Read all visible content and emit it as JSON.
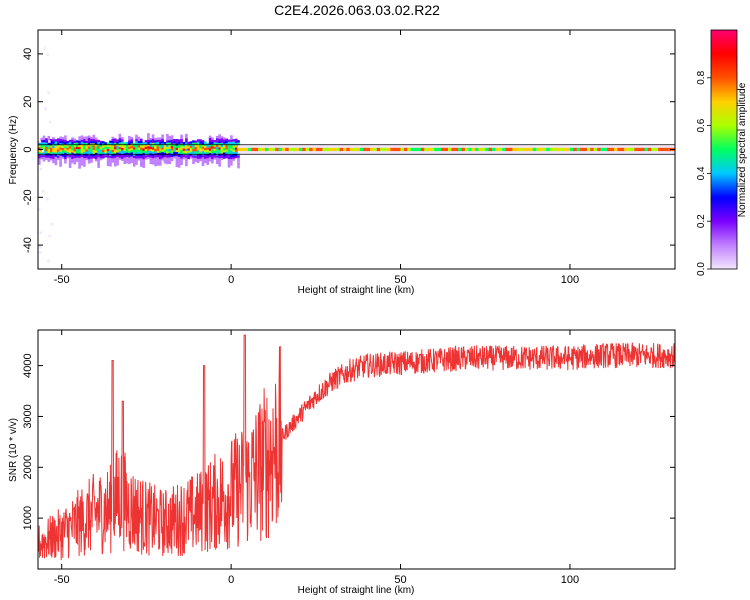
{
  "page": {
    "title": "C2E4.2026.063.03.02.R22"
  },
  "chart_data": [
    {
      "type": "heatmap",
      "name": "spectrogram",
      "xlabel": "Height of straight line (km)",
      "ylabel": "Frequency (Hz)",
      "xlim": [
        -57,
        131
      ],
      "ylim": [
        -50,
        50
      ],
      "xticks": [
        -50,
        0,
        50,
        100
      ],
      "yticks": [
        -40,
        -20,
        0,
        20,
        40
      ],
      "colorbar": {
        "label": "Normalized spectral amplitude",
        "range": [
          0,
          1
        ],
        "ticks": [
          "0.0",
          "0.2",
          "0.4",
          "0.6",
          "0.8"
        ],
        "colors": [
          "#f2e6ff",
          "#c080ff",
          "#7a00ff",
          "#0000ff",
          "#00c8ff",
          "#00ff60",
          "#aaff00",
          "#ffd000",
          "#ff5000",
          "#ff0000",
          "#ff0070"
        ]
      },
      "guide_lines_hz": [
        2,
        -2
      ],
      "features": [
        {
          "x_range": [
            -57,
            2
          ],
          "freq_spread_hz": [
            -8,
            6
          ],
          "description": "broad noisy band"
        },
        {
          "x_range": [
            2,
            131
          ],
          "freq_spread_hz": [
            -1,
            1
          ],
          "peak_amplitude": 0.9
        }
      ]
    },
    {
      "type": "line",
      "name": "snr",
      "xlabel": "Height of straight line (km)",
      "ylabel": "SNR (10 * v/v)",
      "xlim": [
        -57,
        131
      ],
      "ylim": [
        0,
        4700
      ],
      "xticks": [
        -50,
        0,
        50,
        100
      ],
      "yticks": [
        1000,
        2000,
        3000,
        4000
      ],
      "line_color": "#ee3333",
      "x": [
        -57,
        -50,
        -45,
        -40,
        -35,
        -33,
        -30,
        -25,
        -20,
        -15,
        -10,
        -5,
        0,
        5,
        10,
        15,
        20,
        25,
        30,
        35,
        40,
        50,
        60,
        70,
        80,
        90,
        100,
        110,
        120,
        131
      ],
      "y": [
        500,
        700,
        900,
        1100,
        1200,
        1500,
        1200,
        1000,
        900,
        1000,
        1100,
        1300,
        1500,
        1700,
        2100,
        2600,
        3000,
        3400,
        3700,
        3900,
        4000,
        4050,
        4100,
        4150,
        4150,
        4150,
        4150,
        4200,
        4200,
        4200
      ],
      "spikes": [
        {
          "x": -35,
          "y": 4100
        },
        {
          "x": -32,
          "y": 3300
        },
        {
          "x": -8,
          "y": 4000
        },
        {
          "x": 4,
          "y": 4600
        }
      ]
    }
  ]
}
